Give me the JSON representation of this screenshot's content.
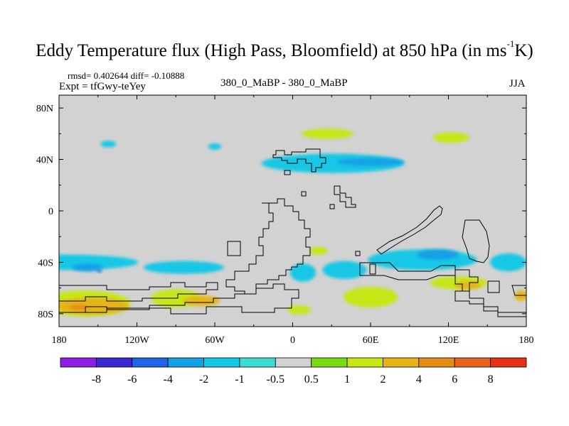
{
  "title": {
    "main": "Eddy Temperature flux (High Pass, Bloomfield) at 850 hPa (in ms",
    "sup": "-1",
    "end": "K)"
  },
  "stats": {
    "rmsd_line": "rmsd= 0.402644 diff= -0.10888"
  },
  "expt_label": "Expt = tfGwy-teYey",
  "experiment_names": "380_0_MaBP - 380_0_MaBP",
  "season": "JJA",
  "chart_data": {
    "type": "heatmap",
    "description_type": "filled contour map",
    "title": "Eddy Temperature flux (High Pass, Bloomfield) at 850 hPa (in ms-1K)",
    "lon_range": [
      -180,
      180
    ],
    "lat_range": [
      -90,
      90
    ],
    "x_ticks": [
      {
        "value": -180,
        "label": "180"
      },
      {
        "value": -120,
        "label": "120W"
      },
      {
        "value": -60,
        "label": "60W"
      },
      {
        "value": 0,
        "label": "0"
      },
      {
        "value": 60,
        "label": "60E"
      },
      {
        "value": 120,
        "label": "120E"
      },
      {
        "value": 180,
        "label": "180"
      }
    ],
    "y_ticks": [
      {
        "value": 80,
        "label": "80N"
      },
      {
        "value": 40,
        "label": "40N"
      },
      {
        "value": 0,
        "label": "0"
      },
      {
        "value": -40,
        "label": "40S"
      },
      {
        "value": -80,
        "label": "80S"
      }
    ],
    "colorbar": {
      "levels": [
        "-8",
        "-6",
        "-4",
        "-2",
        "-1",
        "-0.5",
        "0.5",
        "1",
        "2",
        "4",
        "6",
        "8"
      ],
      "colors": [
        "#8c1ee6",
        "#3c28d2",
        "#1e64e6",
        "#14a0e6",
        "#14c8e6",
        "#3cdcd2",
        "#d2d2d2",
        "#78dc14",
        "#c8e614",
        "#e6b414",
        "#e68c14",
        "#e6641e",
        "#e63214"
      ]
    },
    "regions": [
      {
        "level": "-1",
        "lon": -176,
        "lat": -40,
        "w": 114,
        "h": 12
      },
      {
        "level": "-2",
        "lon": -158,
        "lat": -44,
        "w": 24,
        "h": 6
      },
      {
        "level": "-4",
        "lon": -149,
        "lat": -47,
        "w": 4,
        "h": 2
      },
      {
        "level": "-1",
        "lon": -84,
        "lat": -44,
        "w": 62,
        "h": 10
      },
      {
        "level": "-1",
        "lon": 31,
        "lat": 37,
        "w": 110,
        "h": 15
      },
      {
        "level": "-2",
        "lon": 60,
        "lat": 38,
        "w": 52,
        "h": 6
      },
      {
        "level": "-1",
        "lon": 100,
        "lat": -38,
        "w": 84,
        "h": 16
      },
      {
        "level": "-2",
        "lon": 112,
        "lat": -34,
        "w": 32,
        "h": 8
      },
      {
        "level": "-1",
        "lon": 166,
        "lat": -40,
        "w": 28,
        "h": 14
      },
      {
        "level": "-1",
        "lon": 8,
        "lat": -48,
        "w": 20,
        "h": 14
      },
      {
        "level": "-1",
        "lon": 40,
        "lat": -46,
        "w": 34,
        "h": 14
      },
      {
        "level": "-1",
        "lon": -142,
        "lat": 52,
        "w": 12,
        "h": 5
      },
      {
        "level": "-1",
        "lon": -60,
        "lat": 50,
        "w": 10,
        "h": 5
      },
      {
        "level": "1",
        "lon": 27,
        "lat": 60,
        "w": 40,
        "h": 8
      },
      {
        "level": "1",
        "lon": 122,
        "lat": 57,
        "w": 28,
        "h": 8
      },
      {
        "level": "1",
        "lon": -90,
        "lat": -68,
        "w": 38,
        "h": 14
      },
      {
        "level": "1",
        "lon": 60,
        "lat": -67,
        "w": 42,
        "h": 16
      },
      {
        "level": "1",
        "lon": 128,
        "lat": -56,
        "w": 44,
        "h": 10
      },
      {
        "level": "1",
        "lon": 5,
        "lat": -77,
        "w": 18,
        "h": 7
      },
      {
        "level": "1",
        "lon": 20,
        "lat": -31,
        "w": 14,
        "h": 6
      },
      {
        "level": "1",
        "lon": -160,
        "lat": -72,
        "w": 70,
        "h": 20
      },
      {
        "level": "2",
        "lon": -155,
        "lat": -74,
        "w": 58,
        "h": 13
      },
      {
        "level": "2",
        "lon": -70,
        "lat": -70,
        "w": 28,
        "h": 8
      },
      {
        "level": "2",
        "lon": 135,
        "lat": -58,
        "w": 20,
        "h": 6
      },
      {
        "level": "2",
        "lon": 176,
        "lat": -66,
        "w": 10,
        "h": 8
      },
      {
        "level": "4",
        "lon": -165,
        "lat": -75,
        "w": 14,
        "h": 4
      }
    ]
  }
}
